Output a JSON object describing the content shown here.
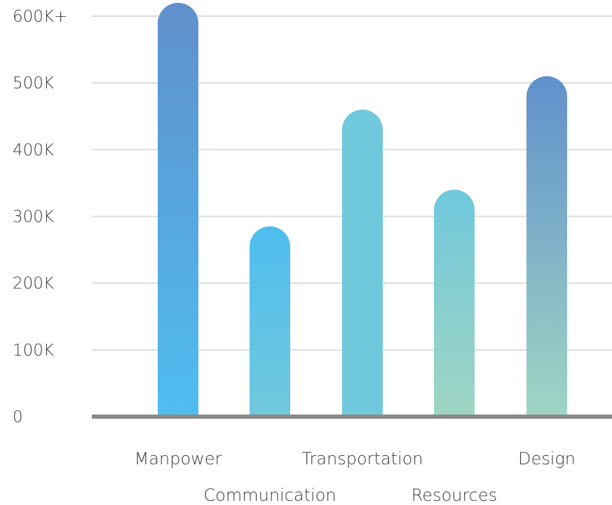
{
  "chart_data": {
    "type": "bar",
    "categories": [
      "Manpower",
      "Communication",
      "Transportation",
      "Resources",
      "Design"
    ],
    "values": [
      620000,
      285000,
      460000,
      340000,
      510000
    ],
    "y_tick_labels": [
      "0",
      "100K",
      "200K",
      "300K",
      "400K",
      "500K",
      "600K+"
    ],
    "ylim": [
      0,
      600000
    ],
    "grid": true,
    "colors": {
      "blue": "#4fbdf0",
      "dark_blue": "#6090cc",
      "teal": "#70c8dc",
      "mint": "#9fd5c3",
      "baseline": "#8a8a8a",
      "grid": "#dcdcdc"
    },
    "bar_gradients": [
      [
        "#6090cc",
        "#4fbdf0"
      ],
      [
        "#4fbdf0",
        "#70c8dc"
      ],
      [
        "#70c8dc",
        "#70c8dc"
      ],
      [
        "#70c8dc",
        "#9fd5c3"
      ],
      [
        "#6090cc",
        "#9fd5c3"
      ]
    ]
  }
}
